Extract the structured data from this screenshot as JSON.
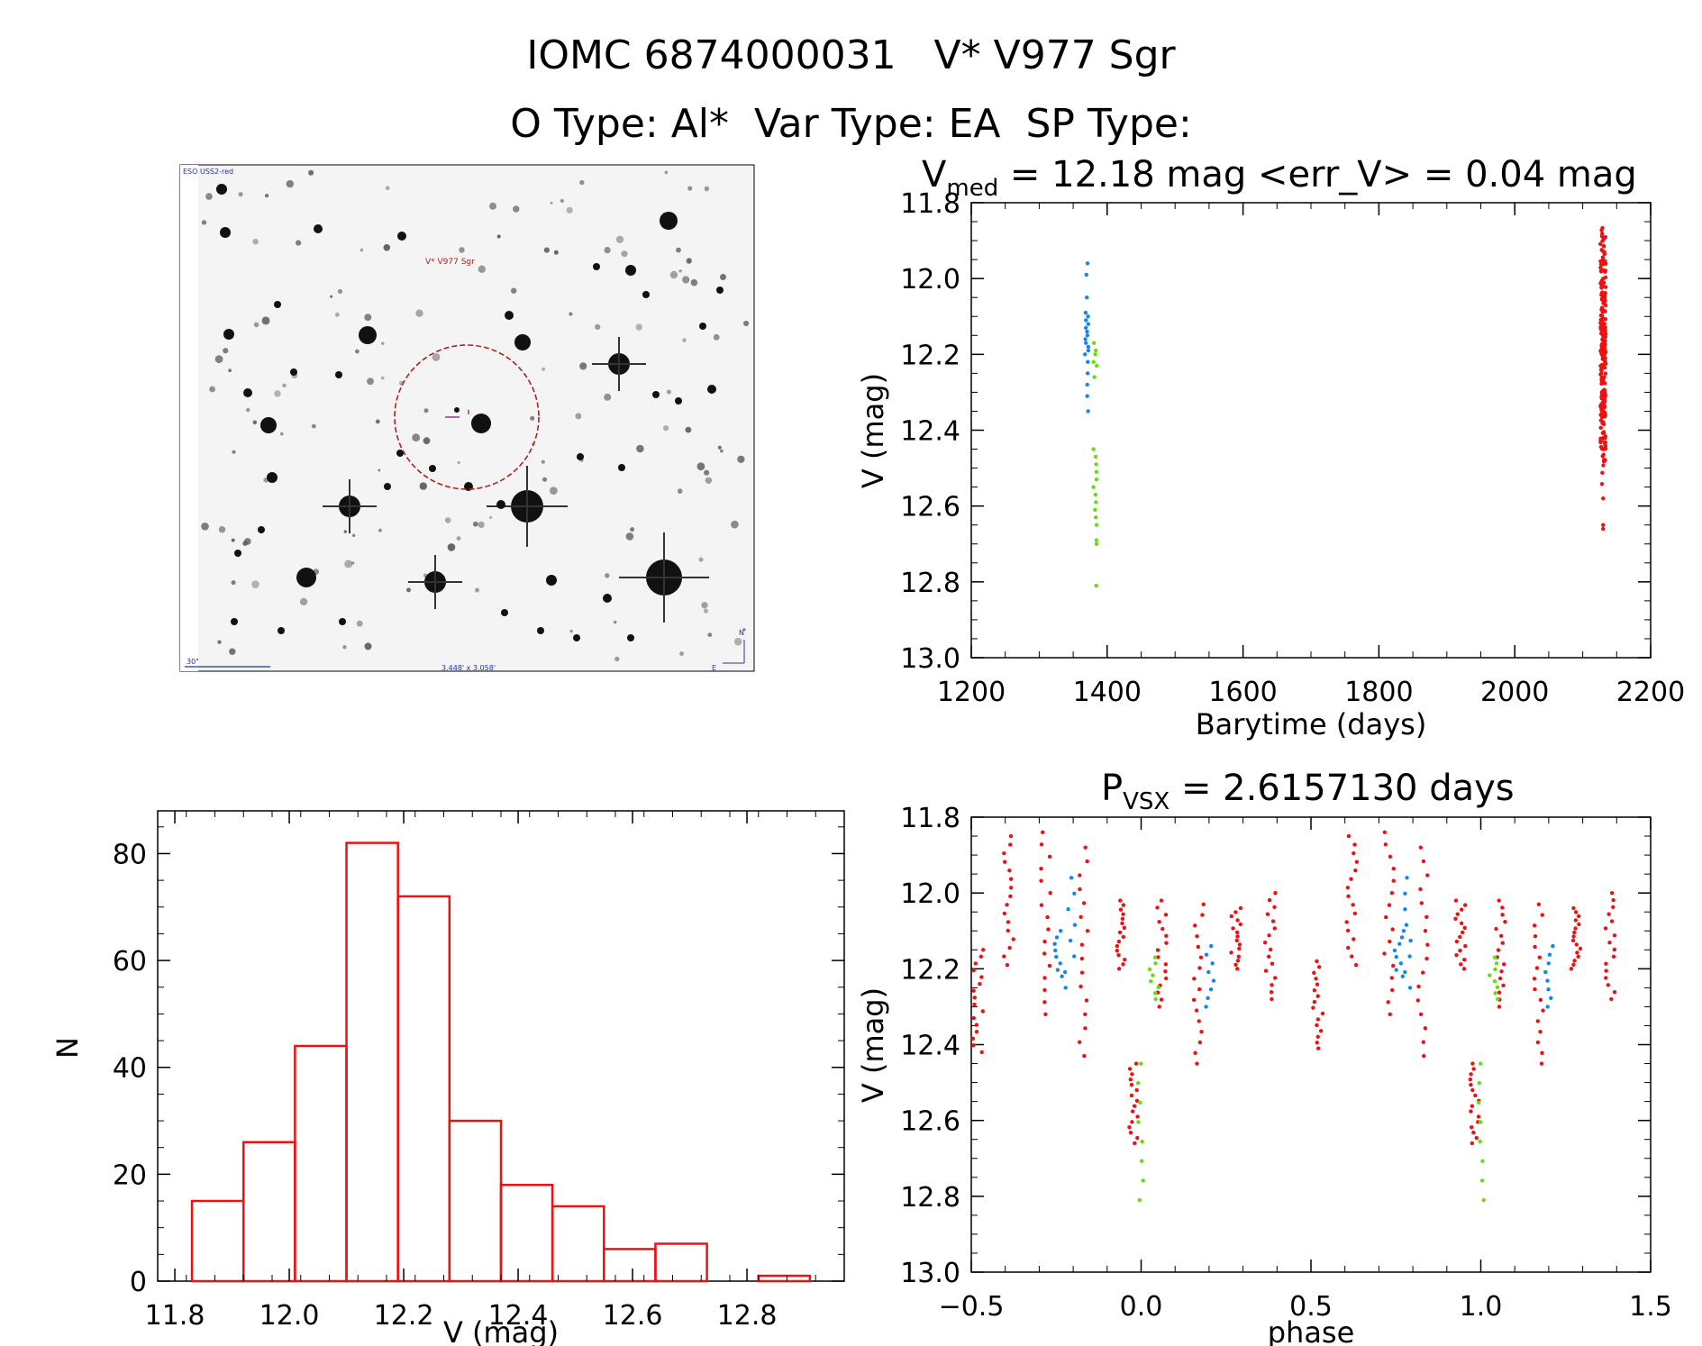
{
  "header": {
    "title_line1": "IOMC 6874000031   V* V977 Sgr",
    "title_line2": "O Type: Al*  Var Type: EA  SP Type:"
  },
  "finder": {
    "label_survey": "ESO USS2-red",
    "label_target": "V* V977 Sgr",
    "label_scale": "30\"",
    "label_fov": "3.448' x 3.058'",
    "label_north": "N",
    "label_east": "E"
  },
  "colors": {
    "red": "#ee1111",
    "blue": "#1188ee",
    "green": "#66dd11",
    "hist": "#ee1111"
  },
  "chart_data": [
    {
      "type": "scatter",
      "name": "lightcurve",
      "title_main": "V",
      "title_sub": "med",
      "title_rest": " = 12.18 mag <err_V> = 0.04 mag",
      "xlabel": "Barytime (days)",
      "ylabel": "V (mag)",
      "xlim": [
        1200,
        2200
      ],
      "ylim": [
        11.8,
        13.0
      ],
      "y_inverted": true,
      "xticks": [
        "1200",
        "1400",
        "1600",
        "1800",
        "2000",
        "2200"
      ],
      "yticks": [
        "11.8",
        "12.0",
        "12.2",
        "12.4",
        "12.6",
        "12.8",
        "13.0"
      ],
      "series": [
        {
          "color": "blue",
          "x": [
            1370,
            1370,
            1370,
            1370,
            1370,
            1370,
            1370,
            1370,
            1370,
            1370,
            1370,
            1370,
            1370,
            1370,
            1370,
            1370,
            1370,
            1370,
            1370,
            1370
          ],
          "y": [
            11.96,
            11.99,
            12.05,
            12.09,
            12.1,
            12.11,
            12.12,
            12.13,
            12.14,
            12.15,
            12.16,
            12.17,
            12.18,
            12.19,
            12.2,
            12.22,
            12.25,
            12.28,
            12.31,
            12.35
          ]
        },
        {
          "color": "green",
          "x": [
            1382,
            1382,
            1382,
            1382,
            1382,
            1382,
            1382,
            1382,
            1382,
            1382,
            1382,
            1382,
            1382,
            1382,
            1382,
            1382,
            1382,
            1382,
            1382,
            1382
          ],
          "y": [
            12.17,
            12.2,
            12.23,
            12.26,
            12.45,
            12.47,
            12.49,
            12.51,
            12.53,
            12.55,
            12.57,
            12.59,
            12.61,
            12.63,
            12.65,
            12.69,
            12.7,
            12.81,
            12.19,
            12.22
          ]
        }
      ],
      "red_cluster": {
        "x": 2130,
        "ymin": 11.84,
        "ymax": 12.55,
        "outliers": [
          12.65,
          12.66,
          12.58
        ]
      }
    },
    {
      "type": "bar",
      "name": "histogram",
      "xlabel": "V (mag)",
      "ylabel": "N",
      "xlim": [
        11.77,
        12.97
      ],
      "ylim": [
        0,
        88
      ],
      "xticks": [
        "11.8",
        "12.0",
        "12.2",
        "12.4",
        "12.6",
        "12.8"
      ],
      "yticks": [
        "0",
        "20",
        "40",
        "60",
        "80"
      ],
      "bin_edges": [
        11.83,
        11.92,
        12.01,
        12.1,
        12.19,
        12.28,
        12.37,
        12.46,
        12.55,
        12.64,
        12.73,
        12.82,
        12.91
      ],
      "values": [
        15,
        26,
        44,
        82,
        72,
        30,
        18,
        14,
        6,
        7,
        0,
        1
      ]
    },
    {
      "type": "scatter",
      "name": "phased",
      "title_main": "P",
      "title_sub": "VSX",
      "title_rest": " = 2.6157130 days",
      "xlabel": "phase",
      "ylabel": "V (mag)",
      "xlim": [
        -0.5,
        1.5
      ],
      "ylim": [
        11.8,
        13.0
      ],
      "y_inverted": true,
      "xticks": [
        "−0.5",
        "0.0",
        "0.5",
        "1.0",
        "1.5"
      ],
      "yticks": [
        "11.8",
        "12.0",
        "12.2",
        "12.4",
        "12.6",
        "12.8",
        "13.0"
      ],
      "groups": [
        {
          "color": "red",
          "phase": -0.48,
          "ymin": 12.15,
          "ymax": 12.42
        },
        {
          "color": "red",
          "phase": -0.39,
          "ymin": 11.85,
          "ymax": 12.19
        },
        {
          "color": "red",
          "phase": -0.28,
          "ymin": 11.84,
          "ymax": 12.32
        },
        {
          "color": "red",
          "phase": -0.17,
          "ymin": 11.88,
          "ymax": 12.43
        },
        {
          "color": "red",
          "phase": -0.06,
          "ymin": 12.02,
          "ymax": 12.2
        },
        {
          "color": "red",
          "phase": -0.02,
          "ymin": 12.45,
          "ymax": 12.66
        },
        {
          "color": "red",
          "phase": 0.06,
          "ymin": 12.02,
          "ymax": 12.3
        },
        {
          "color": "red",
          "phase": 0.17,
          "ymin": 12.03,
          "ymax": 12.45
        },
        {
          "color": "red",
          "phase": 0.28,
          "ymin": 12.04,
          "ymax": 12.2
        },
        {
          "color": "red",
          "phase": 0.38,
          "ymin": 12.0,
          "ymax": 12.28
        },
        {
          "color": "red",
          "phase": 0.52,
          "ymin": 12.18,
          "ymax": 12.41
        },
        {
          "color": "red",
          "phase": 0.62,
          "ymin": 11.85,
          "ymax": 12.19
        },
        {
          "color": "red",
          "phase": 0.73,
          "ymin": 11.84,
          "ymax": 12.32
        },
        {
          "color": "red",
          "phase": 0.83,
          "ymin": 11.88,
          "ymax": 12.43
        },
        {
          "color": "red",
          "phase": 0.94,
          "ymin": 12.02,
          "ymax": 12.2
        },
        {
          "color": "red",
          "phase": 0.98,
          "ymin": 12.45,
          "ymax": 12.66
        },
        {
          "color": "red",
          "phase": 1.06,
          "ymin": 12.02,
          "ymax": 12.3
        },
        {
          "color": "red",
          "phase": 1.17,
          "ymin": 12.03,
          "ymax": 12.45
        },
        {
          "color": "red",
          "phase": 1.28,
          "ymin": 12.04,
          "ymax": 12.2
        },
        {
          "color": "red",
          "phase": 1.38,
          "ymin": 12.0,
          "ymax": 12.28
        },
        {
          "color": "blue",
          "phase": -0.24,
          "ymin": 12.1,
          "ymax": 12.22
        },
        {
          "color": "blue",
          "phase": -0.21,
          "ymin": 11.96,
          "ymax": 12.25
        },
        {
          "color": "blue",
          "phase": 0.76,
          "ymin": 12.1,
          "ymax": 12.22
        },
        {
          "color": "blue",
          "phase": 0.79,
          "ymin": 11.96,
          "ymax": 12.25
        },
        {
          "color": "blue",
          "phase": 0.2,
          "ymin": 12.14,
          "ymax": 12.3
        },
        {
          "color": "blue",
          "phase": 1.2,
          "ymin": 12.14,
          "ymax": 12.3
        },
        {
          "color": "green",
          "phase": 0.0,
          "ymin": 12.45,
          "ymax": 12.81
        },
        {
          "color": "green",
          "phase": 0.04,
          "ymin": 12.17,
          "ymax": 12.28
        },
        {
          "color": "green",
          "phase": 1.0,
          "ymin": 12.45,
          "ymax": 12.81
        },
        {
          "color": "green",
          "phase": 1.04,
          "ymin": 12.17,
          "ymax": 12.28
        }
      ]
    }
  ]
}
